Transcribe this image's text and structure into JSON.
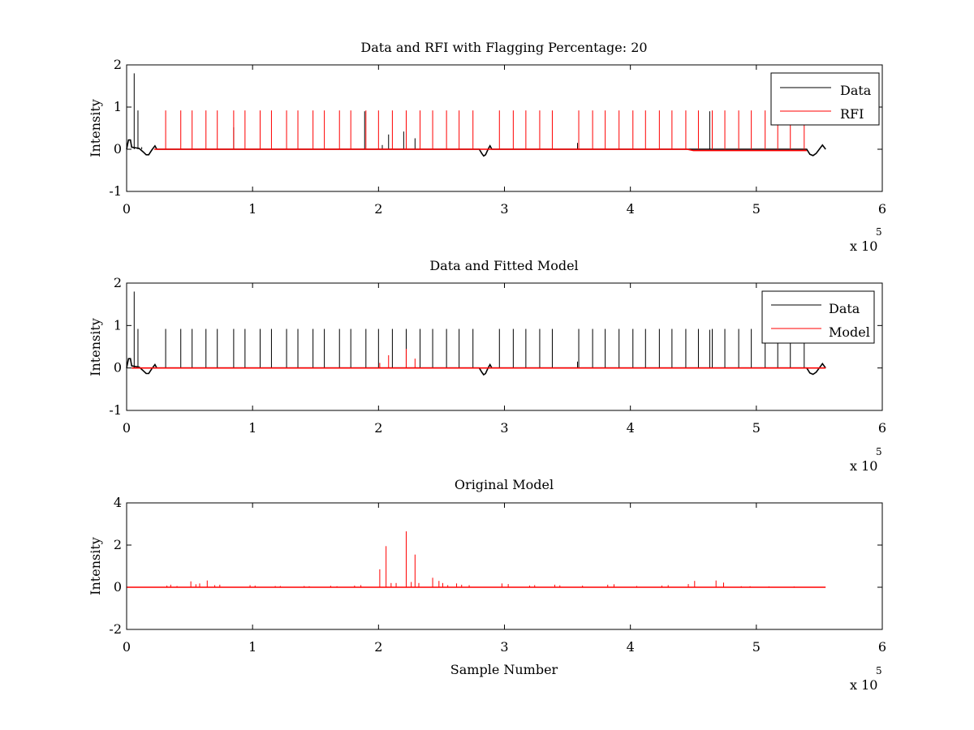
{
  "figure": {
    "x_multiplier_base": "x 10",
    "x_multiplier_exp": "5"
  },
  "chart_data": [
    {
      "type": "line",
      "title": "Data and RFI with Flagging Percentage: 20",
      "xlabel": "",
      "ylabel": "Intensity",
      "xlim": [
        0,
        600000
      ],
      "ylim": [
        -1,
        2
      ],
      "x_ticks": [
        0,
        1,
        2,
        3,
        4,
        5,
        6
      ],
      "y_ticks": [
        -1,
        0,
        1,
        2
      ],
      "legend": {
        "position": "top-right",
        "entries": [
          "Data",
          "RFI"
        ]
      },
      "grid": false,
      "series": [
        {
          "name": "Data",
          "color": "#000000",
          "baseline": [
            [
              0,
              0.0
            ],
            [
              1500,
              0.22
            ],
            [
              3000,
              0.22
            ],
            [
              4000,
              0.05
            ],
            [
              10000,
              0.02
            ],
            [
              13000,
              -0.06
            ],
            [
              15500,
              -0.13
            ],
            [
              17500,
              -0.13
            ],
            [
              20000,
              -0.02
            ],
            [
              22500,
              0.08
            ],
            [
              24000,
              0.0
            ],
            [
              280000,
              0.0
            ],
            [
              282000,
              -0.1
            ],
            [
              283500,
              -0.16
            ],
            [
              285000,
              -0.13
            ],
            [
              287000,
              0.0
            ],
            [
              288500,
              0.08
            ],
            [
              290000,
              0.0
            ],
            [
              540000,
              0.0
            ],
            [
              542500,
              -0.12
            ],
            [
              545000,
              -0.15
            ],
            [
              547500,
              -0.1
            ],
            [
              550000,
              0.0
            ],
            [
              552500,
              0.1
            ],
            [
              555000,
              0.0
            ]
          ],
          "spikes": [
            [
              6000,
              1.8
            ],
            [
              9000,
              0.92
            ],
            [
              12000,
              0.05
            ],
            [
              85000,
              0.52
            ],
            [
              189000,
              0.9
            ],
            [
              203000,
              0.1
            ],
            [
              208000,
              0.35
            ],
            [
              220000,
              0.42
            ],
            [
              229000,
              0.26
            ],
            [
              358000,
              0.15
            ],
            [
              463000,
              0.9
            ]
          ]
        },
        {
          "name": "RFI",
          "color": "#ff0000",
          "baseline": [
            [
              22000,
              0.0
            ],
            [
              445000,
              0.0
            ],
            [
              450000,
              -0.03
            ],
            [
              540000,
              -0.03
            ]
          ],
          "spikes": [
            [
              31000,
              0.92
            ],
            [
              43000,
              0.92
            ],
            [
              52000,
              0.92
            ],
            [
              63000,
              0.92
            ],
            [
              72000,
              0.92
            ],
            [
              85000,
              0.92
            ],
            [
              94000,
              0.92
            ],
            [
              106000,
              0.92
            ],
            [
              115000,
              0.92
            ],
            [
              127000,
              0.92
            ],
            [
              136000,
              0.92
            ],
            [
              148000,
              0.92
            ],
            [
              157000,
              0.92
            ],
            [
              169000,
              0.92
            ],
            [
              178000,
              0.92
            ],
            [
              190000,
              0.92
            ],
            [
              200000,
              0.92
            ],
            [
              211000,
              0.92
            ],
            [
              222000,
              0.92
            ],
            [
              233000,
              0.92
            ],
            [
              243000,
              0.92
            ],
            [
              254000,
              0.92
            ],
            [
              264000,
              0.92
            ],
            [
              275000,
              0.92
            ],
            [
              296000,
              0.92
            ],
            [
              307000,
              0.92
            ],
            [
              317000,
              0.92
            ],
            [
              328000,
              0.92
            ],
            [
              338000,
              0.92
            ],
            [
              359000,
              0.92
            ],
            [
              370000,
              0.92
            ],
            [
              380000,
              0.92
            ],
            [
              391000,
              0.92
            ],
            [
              402000,
              0.92
            ],
            [
              412000,
              0.92
            ],
            [
              423000,
              0.92
            ],
            [
              433000,
              0.92
            ],
            [
              444000,
              0.92
            ],
            [
              454000,
              0.92
            ],
            [
              465000,
              0.92
            ],
            [
              475000,
              0.92
            ],
            [
              486000,
              0.92
            ],
            [
              496000,
              0.92
            ],
            [
              507000,
              0.92
            ],
            [
              517000,
              0.92
            ],
            [
              527000,
              0.92
            ],
            [
              538000,
              0.92
            ]
          ]
        }
      ]
    },
    {
      "type": "line",
      "title": "Data and Fitted Model",
      "xlabel": "",
      "ylabel": "Intensity",
      "xlim": [
        0,
        600000
      ],
      "ylim": [
        -1,
        2
      ],
      "x_ticks": [
        0,
        1,
        2,
        3,
        4,
        5,
        6
      ],
      "y_ticks": [
        -1,
        0,
        1,
        2
      ],
      "legend": {
        "position": "top-right",
        "entries": [
          "Data",
          "Model"
        ]
      },
      "grid": false,
      "series": [
        {
          "name": "Data",
          "color": "#000000",
          "baseline": [
            [
              0,
              0.0
            ],
            [
              1500,
              0.22
            ],
            [
              3000,
              0.22
            ],
            [
              4000,
              0.05
            ],
            [
              10000,
              0.02
            ],
            [
              13000,
              -0.06
            ],
            [
              15500,
              -0.13
            ],
            [
              17500,
              -0.13
            ],
            [
              20000,
              -0.02
            ],
            [
              22500,
              0.08
            ],
            [
              24000,
              0.0
            ],
            [
              280000,
              0.0
            ],
            [
              282000,
              -0.1
            ],
            [
              283500,
              -0.16
            ],
            [
              285000,
              -0.13
            ],
            [
              287000,
              0.0
            ],
            [
              288500,
              0.08
            ],
            [
              290000,
              0.0
            ],
            [
              540000,
              0.0
            ],
            [
              542500,
              -0.12
            ],
            [
              545000,
              -0.15
            ],
            [
              547500,
              -0.1
            ],
            [
              550000,
              0.0
            ],
            [
              552500,
              0.1
            ],
            [
              555000,
              0.0
            ]
          ],
          "spikes": [
            [
              6000,
              1.8
            ],
            [
              9000,
              0.92
            ],
            [
              31000,
              0.92
            ],
            [
              43000,
              0.92
            ],
            [
              52000,
              0.92
            ],
            [
              63000,
              0.92
            ],
            [
              72000,
              0.92
            ],
            [
              85000,
              0.92
            ],
            [
              94000,
              0.92
            ],
            [
              106000,
              0.92
            ],
            [
              115000,
              0.92
            ],
            [
              127000,
              0.92
            ],
            [
              136000,
              0.92
            ],
            [
              148000,
              0.92
            ],
            [
              157000,
              0.92
            ],
            [
              169000,
              0.92
            ],
            [
              178000,
              0.92
            ],
            [
              190000,
              0.92
            ],
            [
              200000,
              0.92
            ],
            [
              211000,
              0.92
            ],
            [
              222000,
              0.92
            ],
            [
              233000,
              0.92
            ],
            [
              243000,
              0.92
            ],
            [
              254000,
              0.92
            ],
            [
              264000,
              0.92
            ],
            [
              275000,
              0.92
            ],
            [
              296000,
              0.92
            ],
            [
              307000,
              0.92
            ],
            [
              317000,
              0.92
            ],
            [
              328000,
              0.92
            ],
            [
              338000,
              0.92
            ],
            [
              358000,
              0.15
            ],
            [
              359000,
              0.92
            ],
            [
              370000,
              0.92
            ],
            [
              380000,
              0.92
            ],
            [
              391000,
              0.92
            ],
            [
              402000,
              0.92
            ],
            [
              412000,
              0.92
            ],
            [
              423000,
              0.92
            ],
            [
              433000,
              0.92
            ],
            [
              444000,
              0.92
            ],
            [
              454000,
              0.92
            ],
            [
              463000,
              0.9
            ],
            [
              465000,
              0.92
            ],
            [
              475000,
              0.92
            ],
            [
              486000,
              0.92
            ],
            [
              496000,
              0.92
            ],
            [
              507000,
              0.92
            ],
            [
              517000,
              0.92
            ],
            [
              527000,
              0.92
            ],
            [
              538000,
              0.92
            ]
          ]
        },
        {
          "name": "Model",
          "color": "#ff0000",
          "baseline": [
            [
              4000,
              0.0
            ],
            [
              555000,
              0.0
            ]
          ],
          "spikes": [
            [
              201000,
              0.12
            ],
            [
              208000,
              0.3
            ],
            [
              222000,
              0.45
            ],
            [
              229000,
              0.22
            ]
          ]
        }
      ]
    },
    {
      "type": "line",
      "title": "Original Model",
      "xlabel": "Sample Number",
      "ylabel": "Intensity",
      "xlim": [
        0,
        600000
      ],
      "ylim": [
        -2,
        4
      ],
      "x_ticks": [
        0,
        1,
        2,
        3,
        4,
        5,
        6
      ],
      "y_ticks": [
        -2,
        0,
        2,
        4
      ],
      "legend": null,
      "grid": false,
      "series": [
        {
          "color": "#ff0000",
          "baseline": [
            [
              0,
              0.0
            ],
            [
              555000,
              0.0
            ]
          ],
          "spikes": [
            [
              32000,
              0.08
            ],
            [
              35000,
              0.12
            ],
            [
              40000,
              0.06
            ],
            [
              51000,
              0.28
            ],
            [
              55000,
              0.14
            ],
            [
              58000,
              0.18
            ],
            [
              64000,
              0.32
            ],
            [
              70000,
              0.1
            ],
            [
              74000,
              0.12
            ],
            [
              98000,
              0.1
            ],
            [
              102000,
              0.08
            ],
            [
              118000,
              0.06
            ],
            [
              122000,
              0.06
            ],
            [
              141000,
              0.06
            ],
            [
              145000,
              0.05
            ],
            [
              162000,
              0.07
            ],
            [
              167000,
              0.05
            ],
            [
              181000,
              0.08
            ],
            [
              186000,
              0.1
            ],
            [
              201000,
              0.85
            ],
            [
              206000,
              1.95
            ],
            [
              210000,
              0.2
            ],
            [
              214000,
              0.2
            ],
            [
              222000,
              2.65
            ],
            [
              226000,
              0.25
            ],
            [
              229000,
              1.55
            ],
            [
              232000,
              0.2
            ],
            [
              243000,
              0.45
            ],
            [
              248000,
              0.3
            ],
            [
              251000,
              0.2
            ],
            [
              255000,
              0.1
            ],
            [
              262000,
              0.18
            ],
            [
              266000,
              0.12
            ],
            [
              272000,
              0.1
            ],
            [
              298000,
              0.18
            ],
            [
              303000,
              0.15
            ],
            [
              320000,
              0.08
            ],
            [
              324000,
              0.1
            ],
            [
              340000,
              0.12
            ],
            [
              344000,
              0.09
            ],
            [
              362000,
              0.08
            ],
            [
              382000,
              0.12
            ],
            [
              387000,
              0.14
            ],
            [
              405000,
              0.06
            ],
            [
              425000,
              0.08
            ],
            [
              430000,
              0.1
            ],
            [
              446000,
              0.15
            ],
            [
              451000,
              0.3
            ],
            [
              468000,
              0.32
            ],
            [
              474000,
              0.22
            ],
            [
              488000,
              0.05
            ],
            [
              495000,
              0.05
            ],
            [
              510000,
              0.04
            ],
            [
              530000,
              0.04
            ]
          ]
        }
      ]
    }
  ]
}
